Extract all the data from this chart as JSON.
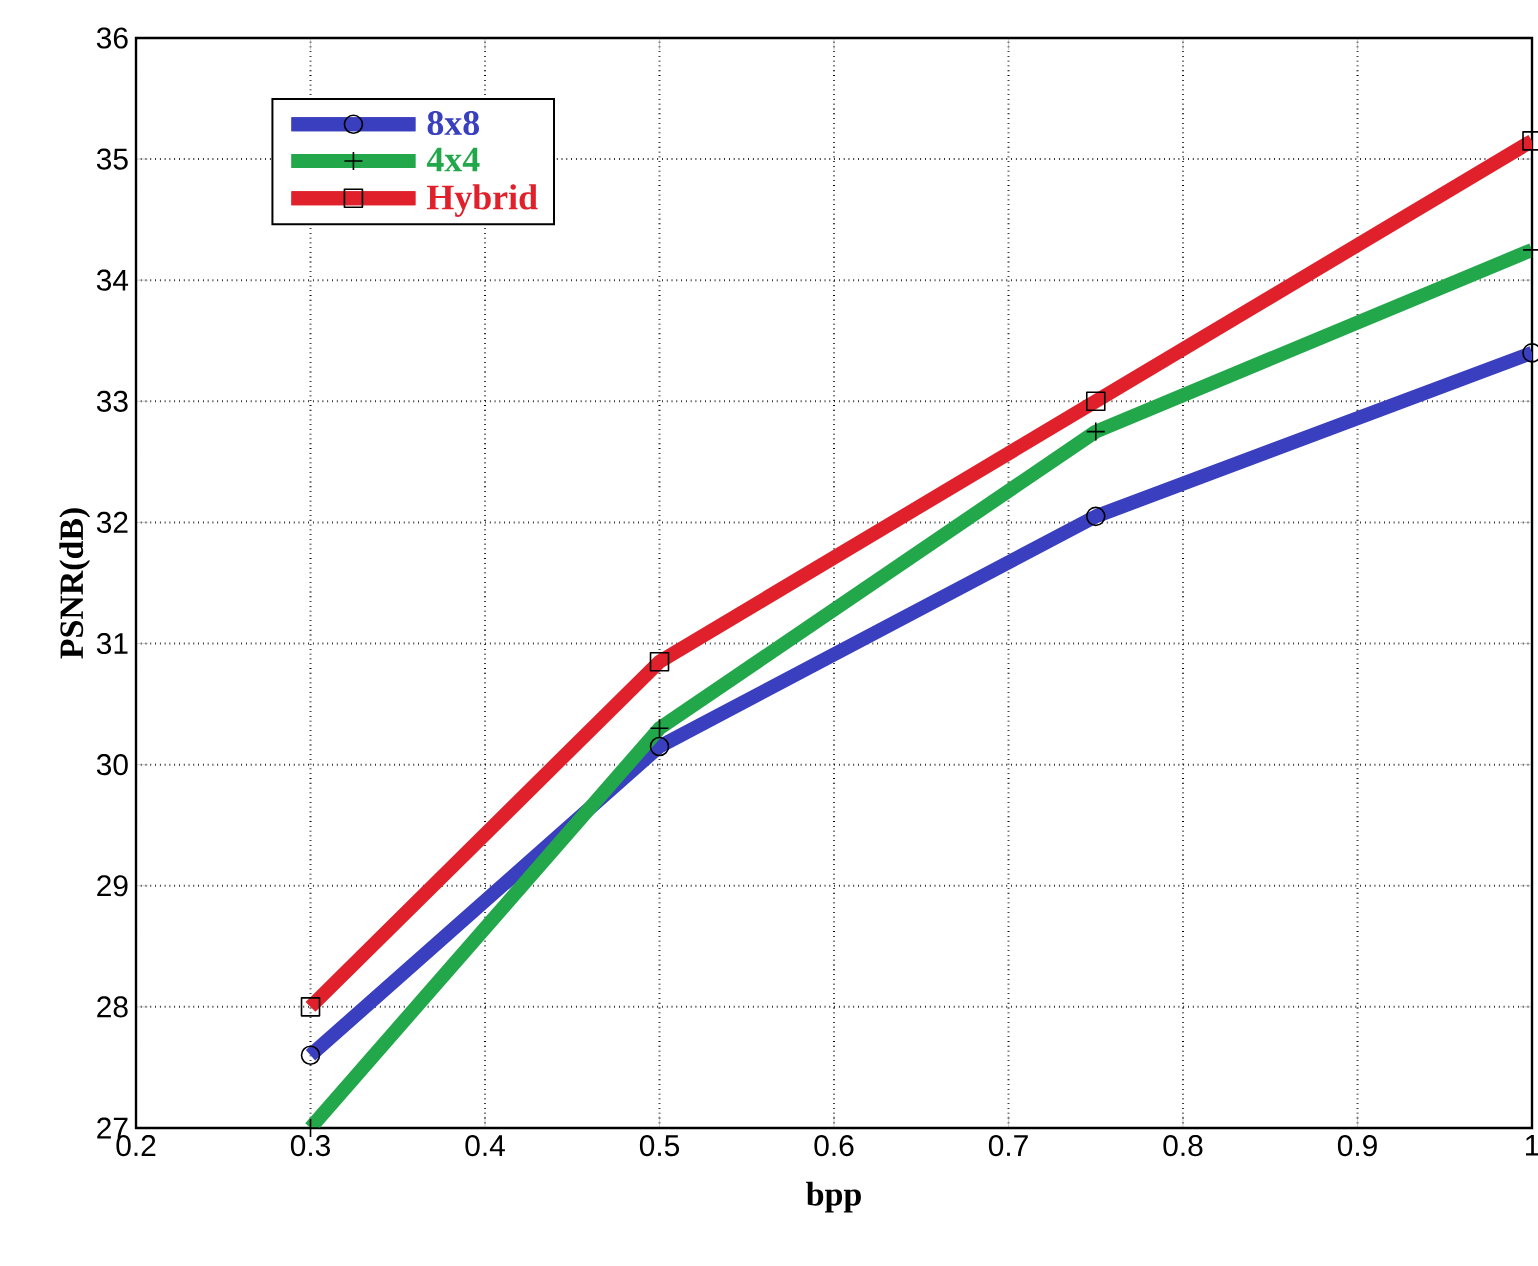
{
  "chart_data": {
    "type": "line",
    "xlabel": "bpp",
    "ylabel": "PSNR(dB)",
    "x": [
      0.3,
      0.5,
      0.75,
      1
    ],
    "series": [
      {
        "name": "8x8",
        "color": "#3a3fbf",
        "marker": "circle",
        "values": [
          27.6,
          30.15,
          32.05,
          33.4
        ]
      },
      {
        "name": "4x4",
        "color": "#22a84a",
        "marker": "cross",
        "values": [
          27.0,
          30.3,
          32.75,
          34.25
        ]
      },
      {
        "name": "Hybrid",
        "color": "#e0202a",
        "marker": "square",
        "values": [
          28.0,
          30.85,
          33.0,
          35.15
        ]
      }
    ],
    "xlim": [
      0.2,
      1
    ],
    "ylim": [
      27,
      36
    ],
    "xticks": [
      0.2,
      0.3,
      0.4,
      0.5,
      0.6,
      0.7,
      0.8,
      0.9,
      1
    ],
    "yticks": [
      27,
      28,
      29,
      30,
      31,
      32,
      33,
      34,
      35,
      36
    ],
    "grid": true,
    "legend": "top left",
    "line_style": "solid"
  }
}
